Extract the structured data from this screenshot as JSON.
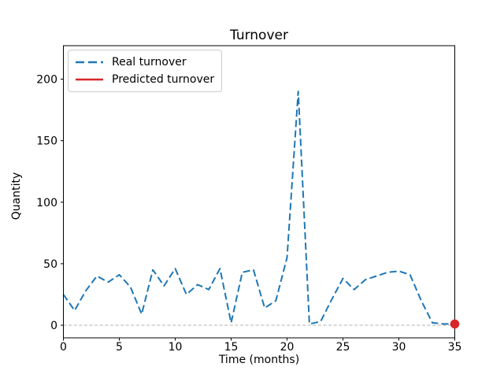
{
  "chart_data": {
    "type": "line",
    "title": "Turnover",
    "xlabel": "Time (months)",
    "ylabel": "Quantity",
    "xlim": [
      0,
      35
    ],
    "ylim": [
      -10,
      227
    ],
    "xticks": [
      0,
      5,
      10,
      15,
      20,
      25,
      30,
      35
    ],
    "yticks": [
      0,
      50,
      100,
      150,
      200
    ],
    "grid": "single dashed horizontal gridline at y=0",
    "legend_position": "upper left",
    "series": [
      {
        "name": "Real turnover",
        "color": "#1f77b4",
        "line_style": "dashed",
        "marker": "none",
        "x": [
          0,
          1,
          2,
          3,
          4,
          5,
          6,
          7,
          8,
          9,
          10,
          11,
          12,
          13,
          14,
          15,
          16,
          17,
          18,
          19,
          20,
          21,
          22,
          23,
          24,
          25,
          26,
          27,
          28,
          29,
          30,
          31,
          32,
          33,
          34,
          35
        ],
        "values": [
          25,
          12,
          28,
          40,
          35,
          41,
          31,
          9,
          45,
          32,
          46,
          25,
          33,
          29,
          46,
          2,
          43,
          45,
          14,
          20,
          55,
          190,
          1,
          3,
          21,
          38,
          29,
          37,
          40,
          43,
          44,
          41,
          20,
          2,
          1,
          1
        ]
      },
      {
        "name": "Predicted turnover",
        "color": "#d62728",
        "line_style": "solid",
        "marker": "circle",
        "x": [
          35
        ],
        "values": [
          1
        ]
      }
    ]
  },
  "colors": {
    "axis": "#000000",
    "gridline": "#b0b0b0",
    "legend_border": "#cccccc",
    "background": "#ffffff"
  }
}
